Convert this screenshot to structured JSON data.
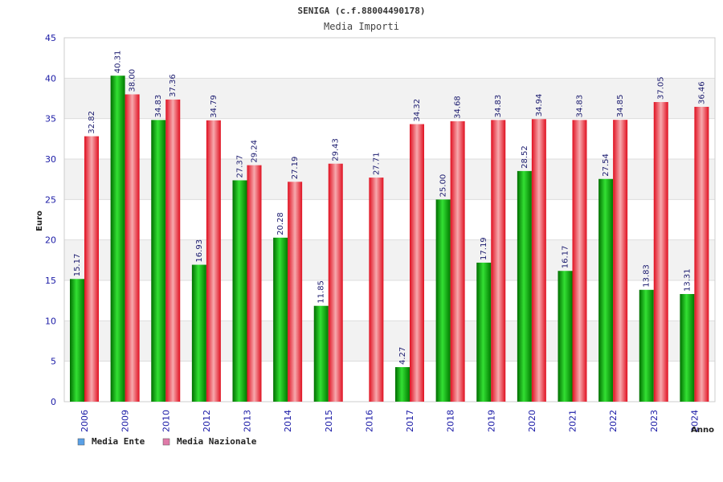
{
  "chart_data": {
    "type": "bar",
    "title": "SENIGA (c.f.88004490178)",
    "subtitle": "Media Importi",
    "xlabel": "Anno",
    "ylabel": "Euro",
    "ylim": [
      0,
      45
    ],
    "yticks": [
      0,
      5,
      10,
      15,
      20,
      25,
      30,
      35,
      40,
      45
    ],
    "categories": [
      "2006",
      "2009",
      "2010",
      "2012",
      "2013",
      "2014",
      "2015",
      "2016",
      "2017",
      "2018",
      "2019",
      "2020",
      "2021",
      "2022",
      "2023",
      "2024"
    ],
    "series": [
      {
        "name": "Media Ente",
        "color": "#00b400",
        "values": [
          15.17,
          40.31,
          34.83,
          16.93,
          27.37,
          20.28,
          11.85,
          null,
          4.27,
          25.0,
          17.19,
          28.52,
          16.17,
          27.54,
          13.83,
          13.31
        ],
        "labels": [
          "15.17",
          "40.31",
          "34.83",
          "16.93",
          "27.37",
          "20.28",
          "11.85",
          "",
          "4.27",
          "25.00",
          "17.19",
          "28.52",
          "16.17",
          "27.54",
          "13.83",
          "13.31"
        ]
      },
      {
        "name": "Media Nazionale",
        "color": "#e8202a",
        "values": [
          32.82,
          38.0,
          37.36,
          34.79,
          29.24,
          27.19,
          29.43,
          27.71,
          34.32,
          34.68,
          34.83,
          34.94,
          34.83,
          34.85,
          37.05,
          36.46
        ],
        "labels": [
          "32.82",
          "38.00",
          "37.36",
          "34.79",
          "29.24",
          "27.19",
          "29.43",
          "27.71",
          "34.32",
          "34.68",
          "34.83",
          "34.94",
          "34.83",
          "34.85",
          "37.05",
          "36.46"
        ]
      }
    ],
    "legend": [
      {
        "label": "Media Ente",
        "swatch": "#5aa0e6"
      },
      {
        "label": "Media Nazionale",
        "swatch": "#e07aa8"
      }
    ],
    "grid": true,
    "legend_position": "bottom-left"
  }
}
